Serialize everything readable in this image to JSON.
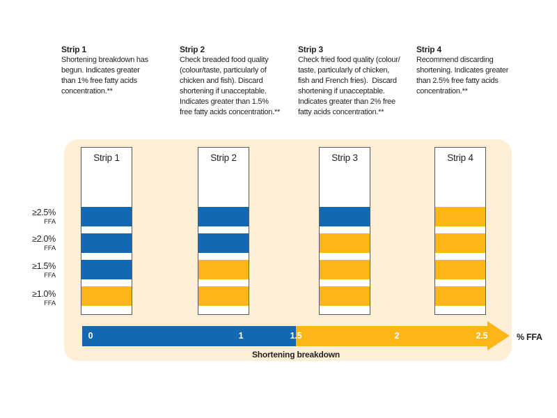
{
  "descriptions": [
    {
      "title": "Strip 1",
      "body": "Shortening breakdown has\nbegun. Indicates greater\nthan 1% free fatty acids\nconcentration.**"
    },
    {
      "title": "Strip 2",
      "body": "Check breaded food quality\n(colour/taste, particularly of\nchicken and fish). Discard\nshortening if unacceptable.\nIndicates greater than 1.5%\nfree fatty acids concentration.**"
    },
    {
      "title": "Strip 3",
      "body": "Check fried food quality (colour/\ntaste, particularly of chicken,\nfish and French fries).  Discard\nshortening if unacceptable.\nIndicates greater than 2% free\nfatty acids concentration.**"
    },
    {
      "title": "Strip 4",
      "body": "Recommend discarding\nshortening. Indicates greater\nthan 2.5% free fatty acids\nconcentration.**"
    }
  ],
  "axis_labels": [
    {
      "value": "≥2.5%",
      "unit": "FFA"
    },
    {
      "value": "≥2.0%",
      "unit": "FFA"
    },
    {
      "value": "≥1.5%",
      "unit": "FFA"
    },
    {
      "value": "≥1.0%",
      "unit": "FFA"
    }
  ],
  "strips": [
    {
      "label": "Strip 1",
      "bands": [
        "blue",
        "blue",
        "blue",
        "yellow"
      ]
    },
    {
      "label": "Strip 2",
      "bands": [
        "blue",
        "blue",
        "yellow",
        "yellow"
      ]
    },
    {
      "label": "Strip 3",
      "bands": [
        "blue",
        "yellow",
        "yellow",
        "yellow"
      ]
    },
    {
      "label": "Strip 4",
      "bands": [
        "yellow",
        "yellow",
        "yellow",
        "yellow"
      ]
    }
  ],
  "scale": {
    "ticks": [
      "0",
      "1",
      "1.5",
      "2",
      "2.5"
    ],
    "axis_label": "% FFA",
    "caption": "Shortening breakdown"
  },
  "colors": {
    "blue": "#1268b1",
    "yellow": "#fcb615",
    "panel": "#fcefd5",
    "text": "#231f20"
  },
  "chart_data": {
    "type": "table",
    "title": "Shortening breakdown test strips",
    "categories": [
      "≥2.5% FFA",
      "≥2.0% FFA",
      "≥1.5% FFA",
      "≥1.0% FFA"
    ],
    "series": [
      {
        "name": "Strip 1",
        "values": [
          "blue",
          "blue",
          "blue",
          "yellow"
        ]
      },
      {
        "name": "Strip 2",
        "values": [
          "blue",
          "blue",
          "yellow",
          "yellow"
        ]
      },
      {
        "name": "Strip 3",
        "values": [
          "blue",
          "yellow",
          "yellow",
          "yellow"
        ]
      },
      {
        "name": "Strip 4",
        "values": [
          "yellow",
          "yellow",
          "yellow",
          "yellow"
        ]
      }
    ],
    "xlabel": "% FFA",
    "x_ticks": [
      0,
      1,
      1.5,
      2,
      2.5
    ],
    "x_blue_range": [
      0,
      1.5
    ],
    "x_yellow_range": [
      1.5,
      2.5
    ]
  }
}
